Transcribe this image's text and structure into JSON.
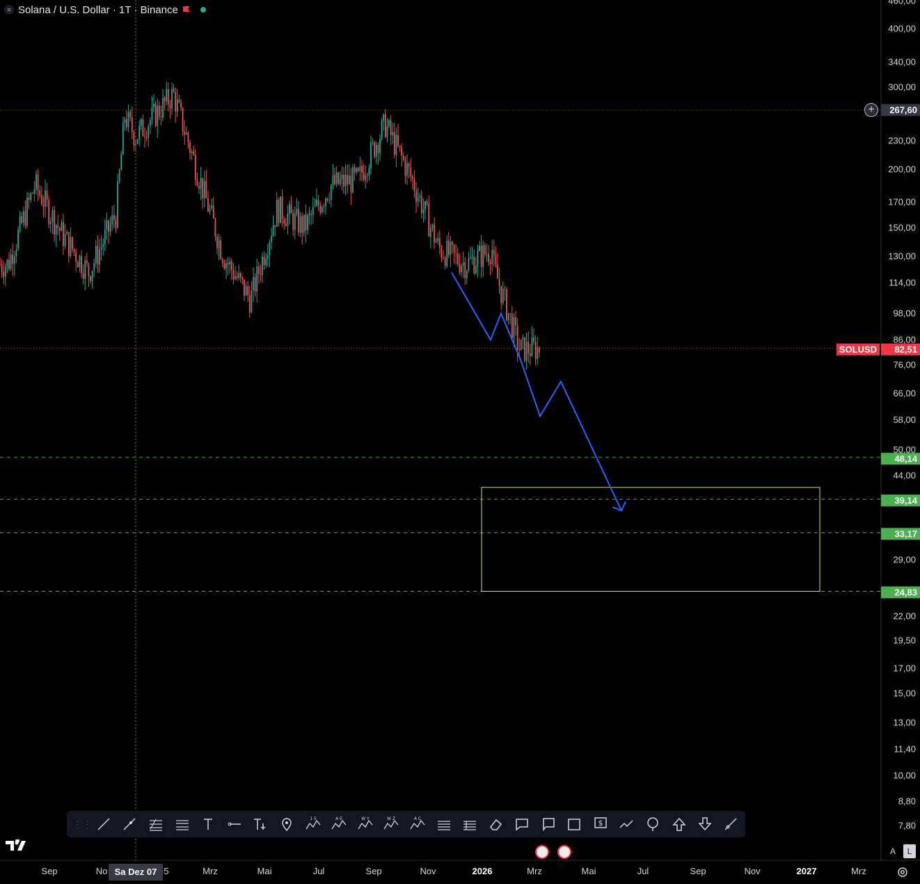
{
  "header": {
    "title": "Solana / U.S. Dollar · 1T · Binance"
  },
  "y_axis": {
    "labels": [
      "460,00",
      "400,00",
      "340,00",
      "300,00",
      "230,00",
      "200,00",
      "170,00",
      "150,00",
      "130,00",
      "114,00",
      "98,00",
      "86,00",
      "76,00",
      "66,00",
      "58,00",
      "50,00",
      "44,00",
      "29,00",
      "22,00",
      "19,50",
      "17,00",
      "15,00",
      "13,00",
      "11,40",
      "10,00",
      "8,80",
      "7,80"
    ]
  },
  "price_tags": {
    "crosshair_price": "267,60",
    "symbol": "SOLUSD",
    "last_price": "82,51",
    "levels": [
      "48,14",
      "39,14",
      "33,17",
      "24,83"
    ]
  },
  "x_axis": {
    "labels": [
      "Sep",
      "No",
      "5",
      "Mrz",
      "Mai",
      "Jul",
      "Sep",
      "Nov",
      "2026",
      "Mrz",
      "Mai",
      "Jul",
      "Sep",
      "Nov",
      "2027",
      "Mrz"
    ],
    "bold": [
      "2026",
      "2027"
    ],
    "crosshair_date": "Sa Dez 07"
  },
  "toolbar": {
    "tools": [
      "trend-line",
      "ray",
      "fib-retracement",
      "parallel-channel",
      "text",
      "horizontal-ray",
      "anchored-text",
      "pin",
      "elliott-impulse",
      "abcde-pattern",
      "wxy-pattern",
      "wxyxz-pattern",
      "abc-pattern",
      "date-range",
      "price-range",
      "eraser",
      "callout",
      "comment",
      "rectangle",
      "price-note",
      "path",
      "anchor",
      "arrow-up",
      "arrow-down",
      "brush"
    ],
    "wave_labels": [
      "1 5",
      "A E",
      "W Y",
      "W Z",
      "A C"
    ]
  },
  "bottom_buttons": {
    "auto": "A",
    "log": "L"
  },
  "chart_data": {
    "type": "candlestick",
    "title": "Solana / U.S. Dollar · 1T · Binance",
    "y_scale": "log",
    "last_price": 82.51,
    "horizontal_levels": [
      267.6,
      82.51,
      48.14,
      39.14,
      33.17,
      24.83
    ],
    "price_path_points": [
      [
        "2024-07",
        125
      ],
      [
        "2024-08",
        185
      ],
      [
        "2024-09",
        145
      ],
      [
        "2024-10",
        120
      ],
      [
        "2024-11",
        160
      ],
      [
        "2024-11-25",
        260
      ],
      [
        "2024-12-07",
        235
      ],
      [
        "2025-01-19",
        290
      ],
      [
        "2025-02",
        200
      ],
      [
        "2025-03",
        130
      ],
      [
        "2025-04",
        105
      ],
      [
        "2025-05",
        165
      ],
      [
        "2025-06",
        150
      ],
      [
        "2025-07",
        185
      ],
      [
        "2025-08",
        190
      ],
      [
        "2025-09",
        250
      ],
      [
        "2025-10",
        190
      ],
      [
        "2025-11",
        135
      ],
      [
        "2025-12",
        125
      ],
      [
        "2026-01",
        135
      ],
      [
        "2026-01-15",
        125
      ],
      [
        "2026-02",
        82
      ],
      [
        "2026-03",
        82.51
      ]
    ],
    "projection_zone": [
      24.83,
      41.5
    ],
    "projection_path": [
      [
        120,
        "start"
      ],
      [
        86,
        ""
      ],
      [
        98,
        ""
      ],
      [
        78,
        ""
      ],
      [
        59,
        ""
      ],
      [
        70,
        ""
      ],
      [
        37,
        "end"
      ]
    ],
    "colors": {
      "up": "#26a69a",
      "down": "#ef5350",
      "projection": "#2962ff",
      "zone": "#e0e060",
      "levels": "#4caf50"
    }
  }
}
